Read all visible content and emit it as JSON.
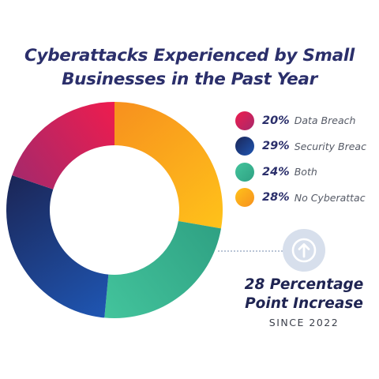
{
  "title_lines": [
    "Cyberattacks Experienced by Small",
    "Businesses in the Past Year"
  ],
  "chart_data": {
    "type": "pie",
    "title": "Cyberattacks Experienced by Small Businesses in the Past Year",
    "donut": true,
    "slices": [
      {
        "label": "Data Breach",
        "value": 20,
        "value_label": "20%",
        "color_start": "#ee1c4e",
        "color_end": "#a6296b"
      },
      {
        "label": "Security Breac",
        "value": 29,
        "value_label": "29%",
        "color_start": "#1b2657",
        "color_end": "#1f56b3"
      },
      {
        "label": "Both",
        "value": 24,
        "value_label": "24%",
        "color_start": "#43c49c",
        "color_end": "#2fa183"
      },
      {
        "label": "No Cyberattac",
        "value": 28,
        "value_label": "28%",
        "color_start": "#ffc21a",
        "color_end": "#f7901e"
      }
    ]
  },
  "callout": {
    "line1": "28 Percentage",
    "line2": "Point Increase",
    "line3": "SINCE 2022",
    "icon": "arrow-up-icon",
    "icon_bg": "#d7dfec",
    "icon_fg": "#ffffff"
  }
}
